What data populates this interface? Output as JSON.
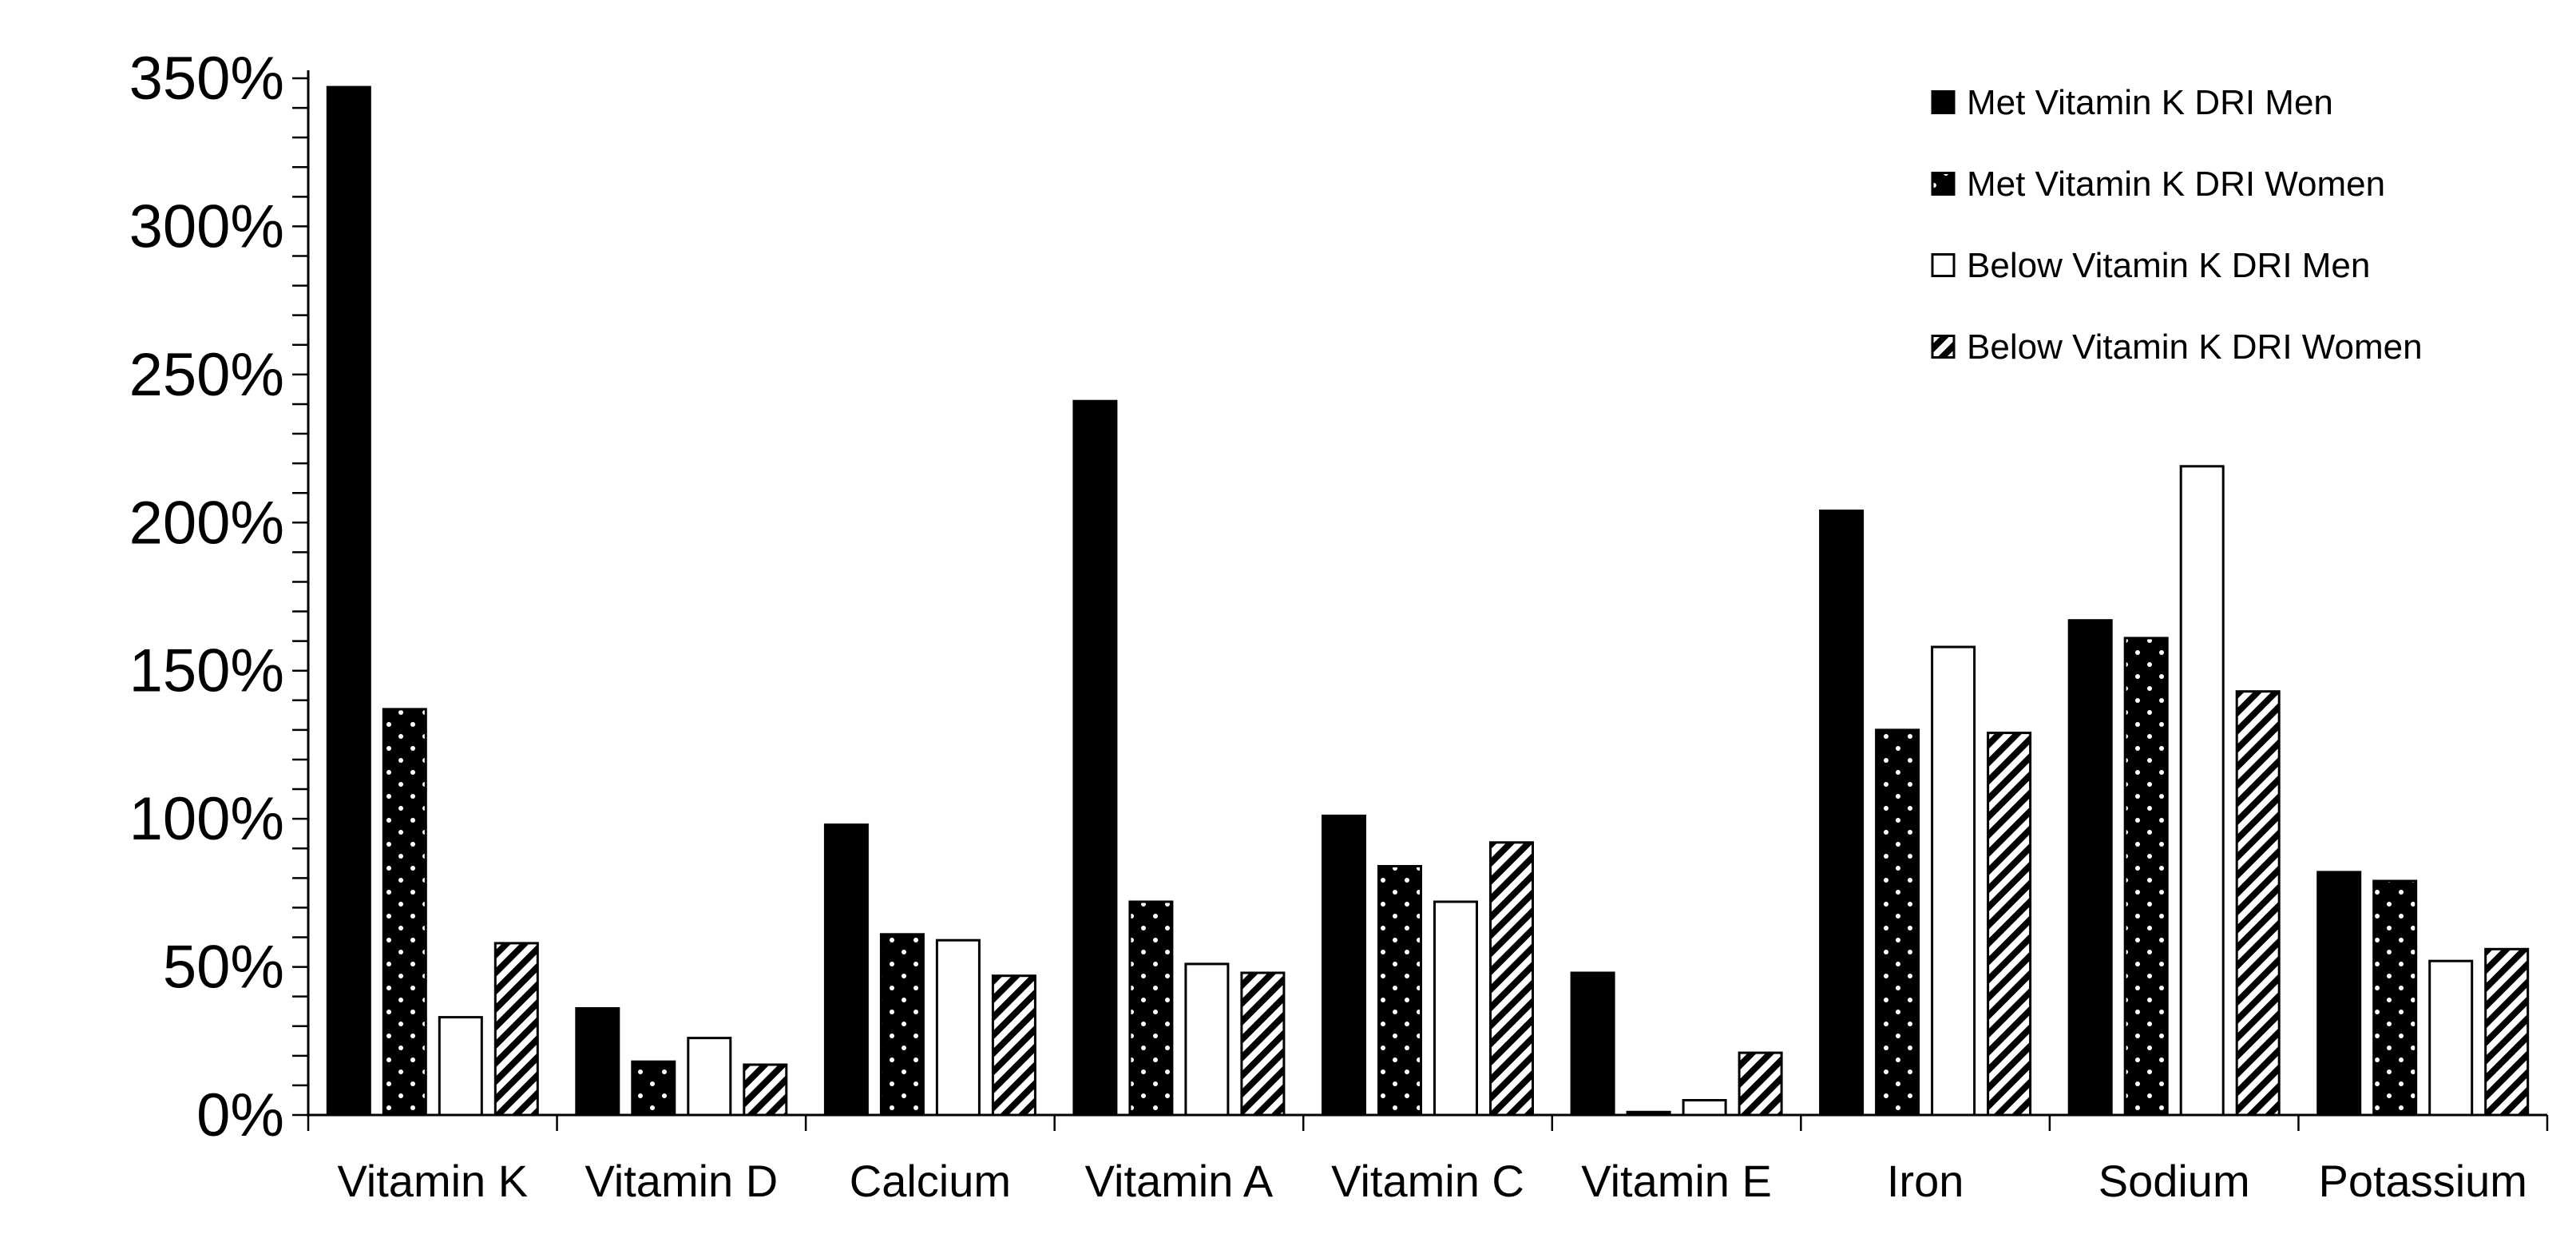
{
  "chart_data": {
    "type": "bar",
    "title": "",
    "xlabel": "",
    "ylabel": "",
    "ylim": [
      0,
      3.5
    ],
    "y_ticks": [
      0,
      0.5,
      1.0,
      1.5,
      2.0,
      2.5,
      3.0,
      3.5
    ],
    "y_tick_labels": [
      "0%",
      "50%",
      "100%",
      "150%",
      "200%",
      "250%",
      "300%",
      "350%"
    ],
    "categories": [
      "Vitamin K",
      "Vitamin D",
      "Calcium",
      "Vitamin A",
      "Vitamin C",
      "Vitamin E",
      "Iron",
      "Sodium",
      "Potassium"
    ],
    "series": [
      {
        "name": "Met Vitamin K DRI Men",
        "fill": "solid",
        "values": [
          3.47,
          0.36,
          0.98,
          2.41,
          1.01,
          0.48,
          2.04,
          1.67,
          0.82
        ]
      },
      {
        "name": "Met Vitamin K DRI Women",
        "fill": "dotted",
        "values": [
          1.37,
          0.18,
          0.61,
          0.72,
          0.84,
          0.01,
          1.3,
          1.61,
          0.79
        ]
      },
      {
        "name": "Below Vitamin K DRI Men",
        "fill": "white",
        "values": [
          0.33,
          0.26,
          0.59,
          0.51,
          0.72,
          0.05,
          1.58,
          2.19,
          0.52
        ]
      },
      {
        "name": "Below Vitamin K DRI Women",
        "fill": "hatched",
        "values": [
          0.58,
          0.17,
          0.47,
          0.48,
          0.92,
          0.21,
          1.29,
          1.43,
          0.56
        ]
      }
    ],
    "legend_position": "top-right",
    "grid": false
  }
}
